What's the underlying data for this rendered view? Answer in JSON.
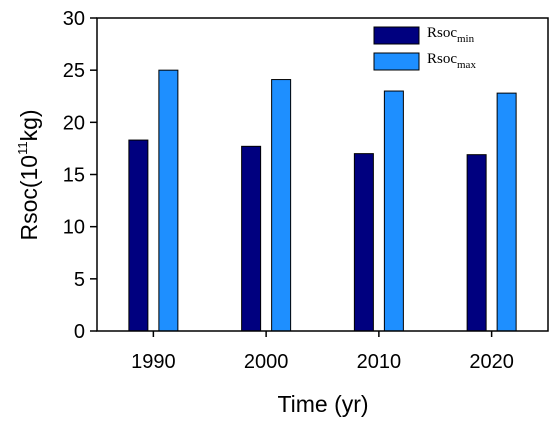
{
  "chart_data": {
    "type": "bar",
    "categories": [
      "1990",
      "2000",
      "2010",
      "2020"
    ],
    "series": [
      {
        "name_base": "Rsoc",
        "name_sub": "min",
        "color": "#00007f",
        "values": [
          18.3,
          17.7,
          17.0,
          16.9
        ]
      },
      {
        "name_base": "Rsoc",
        "name_sub": "max",
        "color": "#1e8fff",
        "values": [
          25.0,
          24.1,
          23.0,
          22.8
        ]
      }
    ],
    "ylim": [
      0,
      30
    ],
    "yticks": [
      "0",
      "5",
      "10",
      "15",
      "20",
      "25",
      "30"
    ],
    "xlabel": "Time (yr)",
    "ylabel_prefix": "Rsoc(10",
    "ylabel_sup": "11",
    "ylabel_suffix": "kg)",
    "legend_position": "top-right",
    "grid": false
  }
}
